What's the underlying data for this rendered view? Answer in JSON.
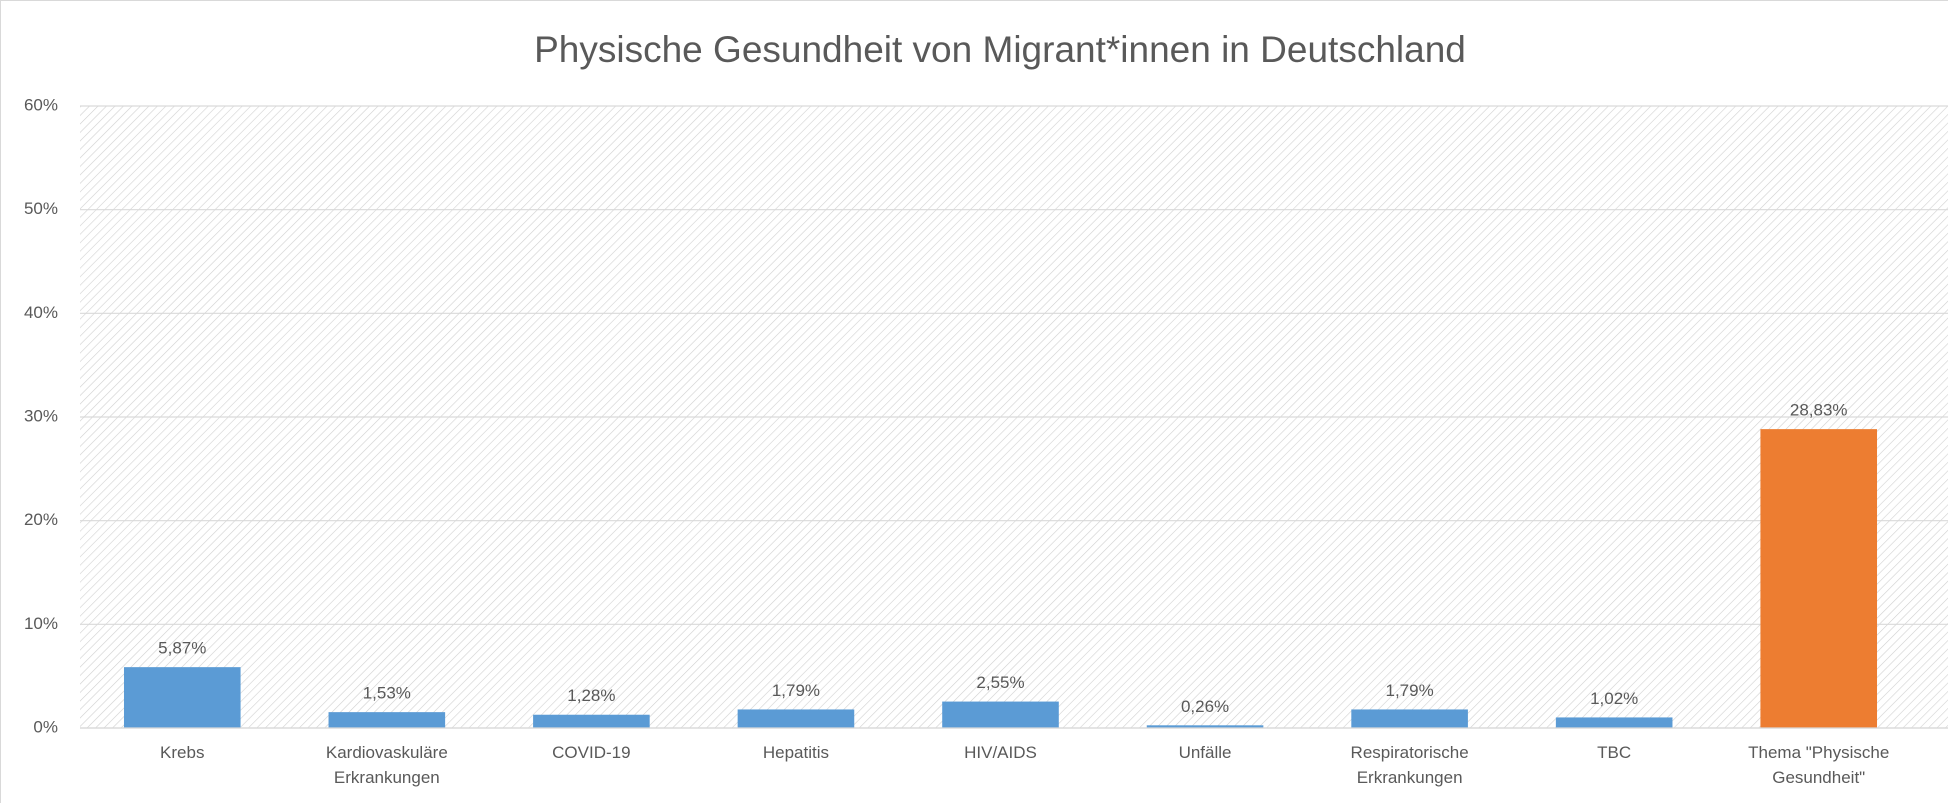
{
  "chart_data": {
    "type": "bar",
    "title": "Physische Gesundheit von Migrant*innen in Deutschland",
    "categories": [
      "Krebs",
      "Kardiovaskuläre Erkrankungen",
      "COVID-19",
      "Hepatitis",
      "HIV/AIDS",
      "Unfälle",
      "Respiratorische Erkrankungen",
      "TBC",
      "Thema \"Physische Gesundheit\""
    ],
    "values": [
      5.87,
      1.53,
      1.28,
      1.79,
      2.55,
      0.26,
      1.79,
      1.02,
      28.83
    ],
    "value_labels": [
      "5,87%",
      "1,53%",
      "1,28%",
      "1,79%",
      "2,55%",
      "0,26%",
      "1,79%",
      "1,02%",
      "28,83%"
    ],
    "colors": [
      "#5b9bd5",
      "#5b9bd5",
      "#5b9bd5",
      "#5b9bd5",
      "#5b9bd5",
      "#5b9bd5",
      "#5b9bd5",
      "#5b9bd5",
      "#ed7d31"
    ],
    "ylim": [
      0,
      60
    ],
    "yticks": [
      {
        "value": 0,
        "label": "0%"
      },
      {
        "value": 10,
        "label": "10%"
      },
      {
        "value": 20,
        "label": "20%"
      },
      {
        "value": 30,
        "label": "30%"
      },
      {
        "value": 40,
        "label": "40%"
      },
      {
        "value": 50,
        "label": "50%"
      },
      {
        "value": 60,
        "label": "60%"
      }
    ],
    "grid": true
  }
}
